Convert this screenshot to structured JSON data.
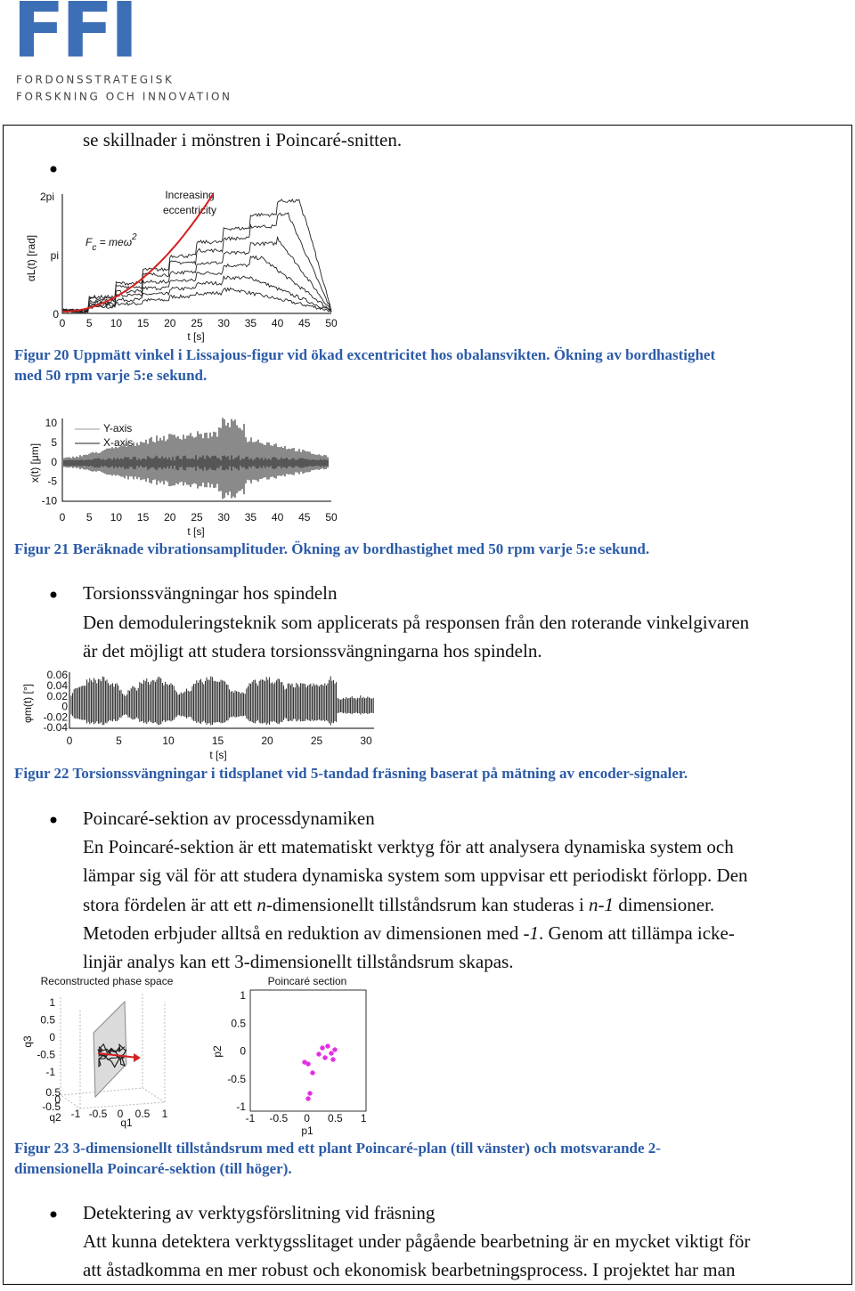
{
  "header": {
    "logo": "FFI",
    "line1": "FORDONSSTRATEGISK",
    "line2": "FORSKNING OCH INNOVATION"
  },
  "intro": "se skillnader i mönstren i Poincaré-snitten.",
  "fig20": {
    "yticks": [
      "2pi",
      "pi",
      "0"
    ],
    "xticks": [
      0,
      5,
      10,
      15,
      20,
      25,
      30,
      35,
      40,
      45,
      50
    ],
    "xlabel": "t [s]",
    "ylabel": "αL(t) [rad]",
    "annotation": [
      "Increasing",
      "eccentricity"
    ],
    "formula": {
      "base": "F",
      "sub": "c",
      "rest": " = meω",
      "sup": "2"
    },
    "caption": [
      "Figur 20 Uppmätt vinkel i Lissajous-figur vid ökad excentricitet hos obalansvikten. Ökning av bordhastighet",
      "med 50 rpm varje 5:e sekund."
    ]
  },
  "fig21": {
    "yticks": [
      10,
      5,
      0,
      -5,
      -10
    ],
    "xticks": [
      0,
      5,
      10,
      15,
      20,
      25,
      30,
      35,
      40,
      45,
      50
    ],
    "xlabel": "t [s]",
    "ylabel": "x(t) [μm]",
    "legend": [
      "Y-axis",
      "X-axis"
    ],
    "caption": [
      "Figur 21 Beräknade vibrationsamplituder. Ökning av bordhastighet med 50 rpm varje 5:e sekund."
    ]
  },
  "sections": [
    {
      "title": "Torsionssvängningar hos spindeln",
      "lines": [
        [
          "Den demoduleringsteknik som applicerats på responsen från den roterande vinkelgivaren"
        ],
        [
          "är det möjligt att studera torsionssvängningarna hos spindeln."
        ]
      ]
    },
    {
      "title": "Poincaré-sektion av processdynamiken",
      "lines": [
        [
          "En Poincaré-sektion är ett matematiskt verktyg för att analysera dynamiska system och"
        ],
        [
          "lämpar sig väl för att studera dynamiska system som uppvisar ett periodiskt förlopp. Den"
        ],
        [
          "stora fördelen är att ett ",
          "n",
          "-dimensionellt tillståndsrum kan studeras i ",
          "n-1",
          " dimensioner."
        ],
        [
          "Metoden erbjuder alltså en reduktion av dimensionen med ",
          "-1",
          ". Genom att tillämpa icke-"
        ],
        [
          "linjär analys kan ett 3-dimensionellt tillståndsrum skapas."
        ]
      ]
    },
    {
      "title": "Detektering av verktygsförslitning vid fräsning",
      "lines": [
        [
          "Att kunna detektera verktygsslitaget under pågående bearbetning är en mycket viktigt för"
        ],
        [
          "att åstadkomma en mer robust och ekonomisk bearbetningsprocess. I projektet har man"
        ]
      ]
    }
  ],
  "fig22": {
    "yticks": [
      0.06,
      0.04,
      0.02,
      0,
      -0.02,
      -0.04
    ],
    "xticks": [
      0,
      5,
      10,
      15,
      20,
      25,
      30
    ],
    "xlabel": "t [s]",
    "ylabel": "φm(t) [°]",
    "caption": [
      "Figur 22 Torsionssvängningar i tidsplanet vid 5-tandad fräsning baserat på mätning av encoder-signaler."
    ]
  },
  "fig23": {
    "left": {
      "title": "Reconstructed phase space",
      "zlabel": "q3",
      "zticks": [
        1,
        0.5,
        0,
        -0.5,
        -1
      ],
      "yticks": [
        0.5,
        0,
        -0.5
      ],
      "ylabel": "q2",
      "xticks": [
        -1,
        -0.5,
        0,
        0.5,
        1
      ],
      "xlabel": "q1"
    },
    "right": {
      "title": "Poincaré section",
      "yticks": [
        1,
        0.5,
        0,
        -0.5,
        -1
      ],
      "ylabel": "p2",
      "xticks": [
        -1,
        -0.5,
        0,
        0.5,
        1
      ],
      "xlabel": "p1"
    },
    "caption": [
      "Figur 23 3-dimensionellt tillståndsrum med ett plant Poincaré-plan (till vänster) och motsvarande 2-",
      "dimensionella Poincaré-sektion (till höger)."
    ]
  }
}
